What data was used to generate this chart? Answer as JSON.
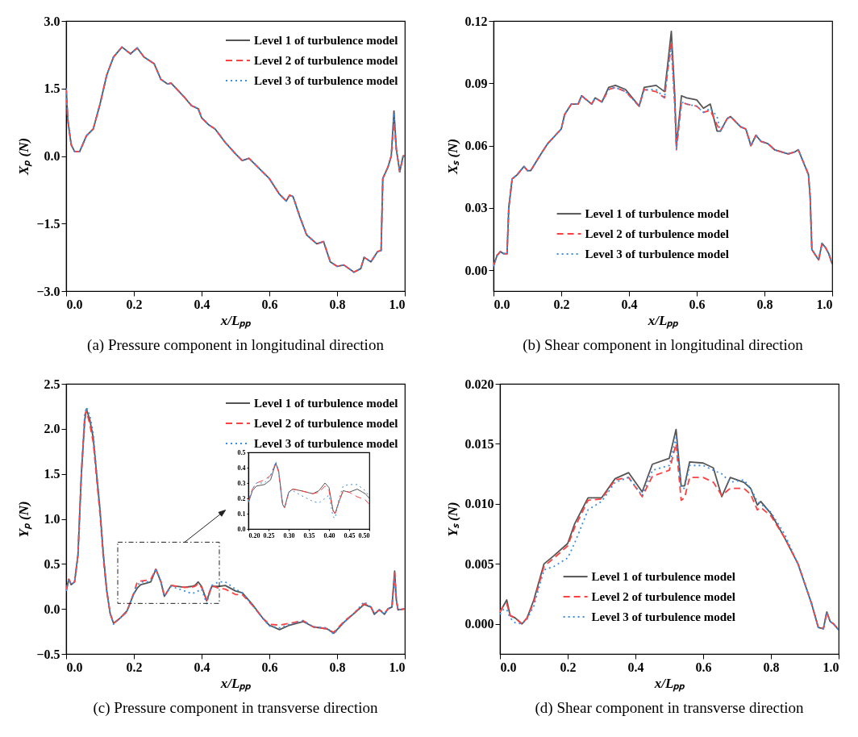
{
  "chart_data": [
    {
      "type": "line",
      "title": "(a) Pressure component in longitudinal direction",
      "xlabel": "x/Lₚₚ",
      "ylabel": "Xₚ (N)",
      "legend": "top right",
      "xlim": [
        0,
        1
      ],
      "ylim": [
        -3,
        3
      ],
      "xticks": [
        {
          "value": 0,
          "label": "0.0"
        },
        {
          "value": 0.2,
          "label": "0.2"
        },
        {
          "value": 0.4,
          "label": "0.4"
        },
        {
          "value": 0.6,
          "label": "0.6"
        },
        {
          "value": 0.8,
          "label": "0.8"
        },
        {
          "value": 1,
          "label": "1.0"
        }
      ],
      "yticks": [
        {
          "value": -3,
          "label": "−3.0"
        },
        {
          "value": -1.5,
          "label": "−1.5"
        },
        {
          "value": 0,
          "label": "0.0"
        },
        {
          "value": 1.5,
          "label": "1.5"
        },
        {
          "value": 3,
          "label": "3.0"
        }
      ],
      "x": [
        0,
        0.005,
        0.015,
        0.025,
        0.04,
        0.06,
        0.08,
        0.1,
        0.12,
        0.14,
        0.165,
        0.19,
        0.21,
        0.23,
        0.26,
        0.28,
        0.3,
        0.31,
        0.35,
        0.37,
        0.39,
        0.4,
        0.42,
        0.44,
        0.47,
        0.5,
        0.52,
        0.54,
        0.58,
        0.6,
        0.63,
        0.65,
        0.66,
        0.67,
        0.69,
        0.71,
        0.74,
        0.76,
        0.78,
        0.8,
        0.82,
        0.85,
        0.87,
        0.88,
        0.9,
        0.92,
        0.93,
        0.935,
        0.95,
        0.96,
        0.968,
        0.975,
        0.985,
        0.995,
        1.0
      ],
      "series": [
        {
          "name": "Level 1 of turbulence model",
          "color": "#555555",
          "line_style": "solid",
          "values": [
            1.5,
            0.8,
            0.25,
            0.1,
            0.1,
            0.45,
            0.6,
            1.15,
            1.8,
            2.2,
            2.42,
            2.27,
            2.4,
            2.2,
            2.05,
            1.7,
            1.6,
            1.62,
            1.3,
            1.12,
            1.05,
            0.85,
            0.7,
            0.6,
            0.3,
            0.05,
            -0.1,
            -0.05,
            -0.35,
            -0.5,
            -0.85,
            -1.0,
            -0.87,
            -0.9,
            -1.35,
            -1.75,
            -1.95,
            -1.9,
            -2.35,
            -2.45,
            -2.42,
            -2.58,
            -2.5,
            -2.25,
            -2.35,
            -2.12,
            -2.1,
            -0.5,
            -0.25,
            0.0,
            1.0,
            0.15,
            -0.35,
            0.0,
            0.0
          ]
        },
        {
          "name": "Level 2 of turbulence model",
          "color": "#ff4040",
          "line_style": "dashed",
          "values": [
            1.5,
            0.8,
            0.25,
            0.1,
            0.1,
            0.45,
            0.6,
            1.15,
            1.8,
            2.2,
            2.42,
            2.27,
            2.4,
            2.2,
            2.05,
            1.7,
            1.6,
            1.62,
            1.3,
            1.12,
            1.05,
            0.85,
            0.7,
            0.6,
            0.3,
            0.05,
            -0.1,
            -0.05,
            -0.35,
            -0.5,
            -0.85,
            -1.0,
            -0.87,
            -0.9,
            -1.35,
            -1.75,
            -1.95,
            -1.9,
            -2.35,
            -2.45,
            -2.42,
            -2.58,
            -2.5,
            -2.25,
            -2.35,
            -2.12,
            -2.1,
            -0.5,
            -0.25,
            0.0,
            0.75,
            0.15,
            -0.35,
            0.0,
            0.0
          ]
        },
        {
          "name": "Level 3 of turbulence model",
          "color": "#3a8ee6",
          "line_style": "dotted",
          "values": [
            1.5,
            0.8,
            0.25,
            0.1,
            0.1,
            0.45,
            0.6,
            1.15,
            1.8,
            2.2,
            2.42,
            2.27,
            2.4,
            2.2,
            2.05,
            1.7,
            1.6,
            1.62,
            1.3,
            1.12,
            1.05,
            0.85,
            0.7,
            0.6,
            0.3,
            0.05,
            -0.1,
            -0.05,
            -0.35,
            -0.5,
            -0.85,
            -1.0,
            -0.87,
            -0.9,
            -1.35,
            -1.75,
            -1.95,
            -1.9,
            -2.35,
            -2.45,
            -2.42,
            -2.58,
            -2.5,
            -2.25,
            -2.35,
            -2.12,
            -2.1,
            -0.5,
            -0.25,
            0.0,
            0.95,
            0.15,
            -0.35,
            0.0,
            0.0
          ]
        }
      ]
    },
    {
      "type": "line",
      "title": "(b) Shear component in longitudinal direction",
      "xlabel": "x/Lₚₚ",
      "ylabel": "Xₛ (N)",
      "legend": "bottom",
      "xlim": [
        0,
        1
      ],
      "ylim": [
        -0.01,
        0.12
      ],
      "xticks": [
        {
          "value": 0,
          "label": "0.0"
        },
        {
          "value": 0.2,
          "label": "0.2"
        },
        {
          "value": 0.4,
          "label": "0.4"
        },
        {
          "value": 0.6,
          "label": "0.6"
        },
        {
          "value": 0.8,
          "label": "0.8"
        },
        {
          "value": 1,
          "label": "1.0"
        }
      ],
      "yticks": [
        {
          "value": 0,
          "label": "0.00"
        },
        {
          "value": 0.03,
          "label": "0.03"
        },
        {
          "value": 0.06,
          "label": "0.06"
        },
        {
          "value": 0.09,
          "label": "0.09"
        },
        {
          "value": 0.12,
          "label": "0.12"
        }
      ],
      "x": [
        0,
        0.01,
        0.02,
        0.03,
        0.04,
        0.045,
        0.055,
        0.07,
        0.09,
        0.1,
        0.11,
        0.14,
        0.16,
        0.2,
        0.21,
        0.23,
        0.25,
        0.26,
        0.29,
        0.3,
        0.32,
        0.34,
        0.36,
        0.39,
        0.43,
        0.445,
        0.48,
        0.505,
        0.515,
        0.525,
        0.535,
        0.54,
        0.555,
        0.57,
        0.6,
        0.62,
        0.64,
        0.66,
        0.67,
        0.69,
        0.7,
        0.73,
        0.745,
        0.76,
        0.775,
        0.79,
        0.81,
        0.83,
        0.87,
        0.89,
        0.9,
        0.93,
        0.935,
        0.94,
        0.96,
        0.97,
        0.98,
        0.99,
        1.0
      ],
      "series": [
        {
          "name": "Level 1 of turbulence model",
          "color": "#555555",
          "line_style": "solid",
          "values": [
            0.002,
            0.007,
            0.009,
            0.008,
            0.008,
            0.03,
            0.044,
            0.046,
            0.05,
            0.048,
            0.048,
            0.056,
            0.061,
            0.068,
            0.075,
            0.08,
            0.08,
            0.084,
            0.08,
            0.083,
            0.081,
            0.088,
            0.089,
            0.087,
            0.079,
            0.088,
            0.089,
            0.086,
            0.1,
            0.115,
            0.085,
            0.06,
            0.084,
            0.083,
            0.082,
            0.078,
            0.08,
            0.067,
            0.067,
            0.073,
            0.074,
            0.069,
            0.068,
            0.06,
            0.065,
            0.062,
            0.061,
            0.058,
            0.056,
            0.057,
            0.058,
            0.046,
            0.035,
            0.01,
            0.005,
            0.013,
            0.011,
            0.008,
            0.003
          ]
        },
        {
          "name": "Level 2 of turbulence model",
          "color": "#ff4040",
          "line_style": "dashed",
          "values": [
            0.002,
            0.007,
            0.009,
            0.008,
            0.008,
            0.03,
            0.044,
            0.046,
            0.05,
            0.048,
            0.048,
            0.056,
            0.061,
            0.068,
            0.075,
            0.08,
            0.08,
            0.084,
            0.08,
            0.083,
            0.081,
            0.087,
            0.088,
            0.086,
            0.079,
            0.087,
            0.086,
            0.083,
            0.097,
            0.11,
            0.08,
            0.058,
            0.081,
            0.08,
            0.079,
            0.076,
            0.077,
            0.07,
            0.067,
            0.073,
            0.074,
            0.069,
            0.068,
            0.06,
            0.065,
            0.062,
            0.061,
            0.058,
            0.056,
            0.057,
            0.058,
            0.046,
            0.035,
            0.01,
            0.005,
            0.013,
            0.011,
            0.008,
            0.003
          ]
        },
        {
          "name": "Level 3 of turbulence model",
          "color": "#3a8ee6",
          "line_style": "dotted",
          "values": [
            0.002,
            0.007,
            0.009,
            0.008,
            0.008,
            0.03,
            0.044,
            0.046,
            0.05,
            0.048,
            0.048,
            0.056,
            0.061,
            0.068,
            0.075,
            0.08,
            0.08,
            0.084,
            0.08,
            0.083,
            0.081,
            0.087,
            0.088,
            0.086,
            0.079,
            0.087,
            0.087,
            0.083,
            0.097,
            0.107,
            0.08,
            0.058,
            0.081,
            0.08,
            0.079,
            0.076,
            0.078,
            0.074,
            0.067,
            0.073,
            0.074,
            0.069,
            0.068,
            0.06,
            0.065,
            0.062,
            0.061,
            0.058,
            0.056,
            0.057,
            0.058,
            0.046,
            0.035,
            0.01,
            0.005,
            0.013,
            0.011,
            0.008,
            0.003
          ]
        }
      ]
    },
    {
      "type": "line",
      "title": "(c) Pressure component in transverse direction",
      "xlabel": "x/Lₚₚ",
      "ylabel": "Yₚ (N)",
      "legend": "top right",
      "xlim": [
        0,
        1
      ],
      "ylim": [
        -0.5,
        2.5
      ],
      "xticks": [
        {
          "value": 0,
          "label": "0.0"
        },
        {
          "value": 0.2,
          "label": "0.2"
        },
        {
          "value": 0.4,
          "label": "0.4"
        },
        {
          "value": 0.6,
          "label": "0.6"
        },
        {
          "value": 0.8,
          "label": "0.8"
        },
        {
          "value": 1,
          "label": "1.0"
        }
      ],
      "yticks": [
        {
          "value": -0.5,
          "label": "−0.5"
        },
        {
          "value": 0,
          "label": "0.0"
        },
        {
          "value": 0.5,
          "label": "0.5"
        },
        {
          "value": 1,
          "label": "1.0"
        },
        {
          "value": 1.5,
          "label": "1.5"
        },
        {
          "value": 2,
          "label": "2.0"
        },
        {
          "value": 2.5,
          "label": "2.5"
        }
      ],
      "x": [
        0,
        0.008,
        0.015,
        0.025,
        0.035,
        0.045,
        0.055,
        0.06,
        0.07,
        0.08,
        0.1,
        0.11,
        0.12,
        0.13,
        0.14,
        0.16,
        0.18,
        0.2,
        0.21,
        0.22,
        0.24,
        0.25,
        0.265,
        0.28,
        0.29,
        0.31,
        0.35,
        0.37,
        0.38,
        0.39,
        0.4,
        0.415,
        0.43,
        0.45,
        0.47,
        0.5,
        0.52,
        0.55,
        0.58,
        0.6,
        0.63,
        0.66,
        0.7,
        0.73,
        0.77,
        0.79,
        0.82,
        0.85,
        0.88,
        0.9,
        0.91,
        0.925,
        0.94,
        0.95,
        0.962,
        0.97,
        0.975,
        0.98,
        1.0
      ],
      "series": [
        {
          "name": "Level 1 of turbulence model",
          "color": "#555555",
          "line_style": "solid",
          "values": [
            0.2,
            0.33,
            0.27,
            0.3,
            0.6,
            1.5,
            2.1,
            2.22,
            2.1,
            1.9,
            1.1,
            0.6,
            0.2,
            -0.05,
            -0.16,
            -0.1,
            -0.02,
            0.17,
            0.23,
            0.27,
            0.29,
            0.3,
            0.44,
            0.3,
            0.14,
            0.26,
            0.24,
            0.25,
            0.26,
            0.3,
            0.25,
            0.09,
            0.25,
            0.25,
            0.26,
            0.2,
            0.18,
            0.05,
            -0.1,
            -0.18,
            -0.23,
            -0.18,
            -0.14,
            -0.2,
            -0.22,
            -0.27,
            -0.15,
            -0.05,
            0.05,
            0.02,
            -0.06,
            -0.01,
            -0.06,
            0.0,
            0.02,
            0.42,
            0.1,
            -0.01,
            0.0
          ]
        },
        {
          "name": "Level 2 of turbulence model",
          "color": "#ff4040",
          "line_style": "dashed",
          "values": [
            0.2,
            0.33,
            0.27,
            0.3,
            0.6,
            1.5,
            2.15,
            2.2,
            2.05,
            1.85,
            1.05,
            0.55,
            0.2,
            -0.05,
            -0.16,
            -0.1,
            -0.03,
            0.18,
            0.3,
            0.31,
            0.32,
            0.33,
            0.44,
            0.3,
            0.14,
            0.26,
            0.24,
            0.24,
            0.25,
            0.28,
            0.24,
            0.1,
            0.26,
            0.23,
            0.22,
            0.16,
            0.16,
            0.04,
            -0.1,
            -0.17,
            -0.18,
            -0.16,
            -0.13,
            -0.2,
            -0.22,
            -0.26,
            -0.14,
            -0.05,
            0.06,
            0.02,
            -0.05,
            -0.01,
            -0.05,
            0.0,
            0.02,
            0.4,
            0.1,
            -0.01,
            0.0
          ]
        },
        {
          "name": "Level 3 of turbulence model",
          "color": "#3a8ee6",
          "line_style": "dotted",
          "values": [
            0.2,
            0.33,
            0.27,
            0.3,
            0.6,
            1.5,
            2.15,
            2.24,
            2.15,
            1.95,
            1.1,
            0.6,
            0.2,
            -0.05,
            -0.17,
            -0.1,
            -0.02,
            0.17,
            0.26,
            0.3,
            0.3,
            0.31,
            0.45,
            0.3,
            0.14,
            0.25,
            0.2,
            0.17,
            0.18,
            0.2,
            0.22,
            0.06,
            0.26,
            0.3,
            0.3,
            0.22,
            0.18,
            0.04,
            -0.1,
            -0.19,
            -0.21,
            -0.17,
            -0.13,
            -0.2,
            -0.21,
            -0.28,
            -0.15,
            -0.05,
            0.08,
            0.02,
            -0.05,
            -0.01,
            -0.06,
            0.0,
            0.02,
            0.35,
            0.1,
            -0.01,
            0.0
          ]
        }
      ]
    },
    {
      "type": "line",
      "title": "(d) Shear component in transverse direction",
      "xlabel": "x/Lₚₚ",
      "ylabel": "Yₛ (N)",
      "legend": "bottom",
      "xlim": [
        0,
        1
      ],
      "ylim": [
        -0.0025,
        0.02
      ],
      "xticks": [
        {
          "value": 0,
          "label": "0.0"
        },
        {
          "value": 0.2,
          "label": "0.2"
        },
        {
          "value": 0.4,
          "label": "0.4"
        },
        {
          "value": 0.6,
          "label": "0.6"
        },
        {
          "value": 0.8,
          "label": "0.8"
        },
        {
          "value": 1,
          "label": "1.0"
        }
      ],
      "yticks": [
        {
          "value": 0,
          "label": "0.000"
        },
        {
          "value": 0.005,
          "label": "0.005"
        },
        {
          "value": 0.01,
          "label": "0.010"
        },
        {
          "value": 0.015,
          "label": "0.015"
        },
        {
          "value": 0.02,
          "label": "0.020"
        }
      ],
      "x": [
        0,
        0.01,
        0.02,
        0.03,
        0.045,
        0.065,
        0.08,
        0.1,
        0.13,
        0.16,
        0.2,
        0.22,
        0.26,
        0.3,
        0.34,
        0.38,
        0.42,
        0.45,
        0.5,
        0.52,
        0.535,
        0.545,
        0.56,
        0.6,
        0.63,
        0.655,
        0.68,
        0.72,
        0.74,
        0.76,
        0.77,
        0.8,
        0.84,
        0.88,
        0.92,
        0.94,
        0.955,
        0.965,
        0.975,
        0.985,
        1.0
      ],
      "series": [
        {
          "name": "Level 1 of turbulence model",
          "color": "#555555",
          "line_style": "solid",
          "values": [
            0.001,
            0.0015,
            0.002,
            0.0007,
            0.0005,
            0.0,
            0.0005,
            0.002,
            0.005,
            0.0057,
            0.0067,
            0.0083,
            0.0105,
            0.0105,
            0.0121,
            0.0126,
            0.011,
            0.0133,
            0.0138,
            0.0162,
            0.0115,
            0.0115,
            0.0135,
            0.0134,
            0.013,
            0.0106,
            0.0122,
            0.0118,
            0.0113,
            0.0099,
            0.0102,
            0.0092,
            0.0072,
            0.005,
            0.0017,
            -0.0003,
            -0.0004,
            0.001,
            0.0002,
            0.0,
            -0.0005
          ]
        },
        {
          "name": "Level 2 of turbulence model",
          "color": "#ff4040",
          "line_style": "dashed",
          "values": [
            0.001,
            0.0015,
            0.0017,
            0.0007,
            0.0005,
            0.0,
            0.0005,
            0.0018,
            0.0048,
            0.0055,
            0.0065,
            0.008,
            0.0103,
            0.0104,
            0.012,
            0.0122,
            0.0106,
            0.0123,
            0.0128,
            0.015,
            0.0103,
            0.0105,
            0.0122,
            0.0122,
            0.0118,
            0.0107,
            0.0113,
            0.0113,
            0.0108,
            0.0095,
            0.0097,
            0.009,
            0.0072,
            0.005,
            0.0017,
            -0.0003,
            -0.0004,
            0.001,
            0.0002,
            0.0,
            -0.0005
          ]
        },
        {
          "name": "Level 3 of turbulence model",
          "color": "#3a8ee6",
          "line_style": "dotted",
          "values": [
            0.0008,
            0.0012,
            0.0012,
            0.0005,
            0.0001,
            0.0,
            0.0004,
            0.0015,
            0.0045,
            0.0048,
            0.0055,
            0.0067,
            0.0095,
            0.0102,
            0.0118,
            0.0122,
            0.0107,
            0.0128,
            0.0132,
            0.0155,
            0.0113,
            0.0113,
            0.0132,
            0.0132,
            0.0128,
            0.0125,
            0.0118,
            0.012,
            0.0113,
            0.0102,
            0.01,
            0.0093,
            0.0075,
            0.005,
            0.0017,
            -0.0003,
            -0.0004,
            0.001,
            0.0002,
            0.0,
            -0.0005
          ]
        }
      ]
    },
    {
      "type": "line",
      "xlim": [
        0.2,
        0.5
      ],
      "ylim": [
        0,
        0.5
      ],
      "xticks": [
        {
          "value": 0.2,
          "label": "0.20"
        },
        {
          "value": 0.25,
          "label": "0.25"
        },
        {
          "value": 0.3,
          "label": "0.30"
        },
        {
          "value": 0.35,
          "label": "0.35"
        },
        {
          "value": 0.4,
          "label": "0.40"
        },
        {
          "value": 0.45,
          "label": "0.45"
        },
        {
          "value": 0.5,
          "label": "0.50"
        }
      ],
      "yticks": [
        {
          "value": 0,
          "label": "0.0"
        },
        {
          "value": 0.1,
          "label": "0.1"
        },
        {
          "value": 0.2,
          "label": "0.2"
        },
        {
          "value": 0.3,
          "label": "0.3"
        },
        {
          "value": 0.4,
          "label": "0.4"
        },
        {
          "value": 0.5,
          "label": "0.5"
        }
      ],
      "x": [
        0.2,
        0.21,
        0.22,
        0.24,
        0.255,
        0.268,
        0.275,
        0.285,
        0.29,
        0.3,
        0.31,
        0.33,
        0.36,
        0.375,
        0.39,
        0.4,
        0.41,
        0.415,
        0.425,
        0.435,
        0.45,
        0.47,
        0.49,
        0.5
      ],
      "series": [
        {
          "color": "#555555",
          "line_style": "solid",
          "values": [
            0.17,
            0.25,
            0.28,
            0.29,
            0.32,
            0.43,
            0.38,
            0.16,
            0.14,
            0.24,
            0.26,
            0.25,
            0.23,
            0.25,
            0.3,
            0.27,
            0.12,
            0.1,
            0.18,
            0.25,
            0.24,
            0.26,
            0.23,
            0.2
          ]
        },
        {
          "color": "#ff4040",
          "line_style": "dashed",
          "values": [
            0.18,
            0.26,
            0.3,
            0.32,
            0.35,
            0.43,
            0.37,
            0.15,
            0.14,
            0.24,
            0.26,
            0.25,
            0.23,
            0.24,
            0.28,
            0.25,
            0.12,
            0.1,
            0.18,
            0.25,
            0.24,
            0.21,
            0.19,
            0.16
          ]
        },
        {
          "color": "#3a8ee6",
          "line_style": "dotted",
          "values": [
            0.18,
            0.26,
            0.3,
            0.3,
            0.35,
            0.44,
            0.38,
            0.16,
            0.14,
            0.24,
            0.25,
            0.22,
            0.18,
            0.17,
            0.2,
            0.22,
            0.08,
            0.07,
            0.2,
            0.28,
            0.29,
            0.29,
            0.25,
            0.21
          ]
        }
      ]
    }
  ]
}
